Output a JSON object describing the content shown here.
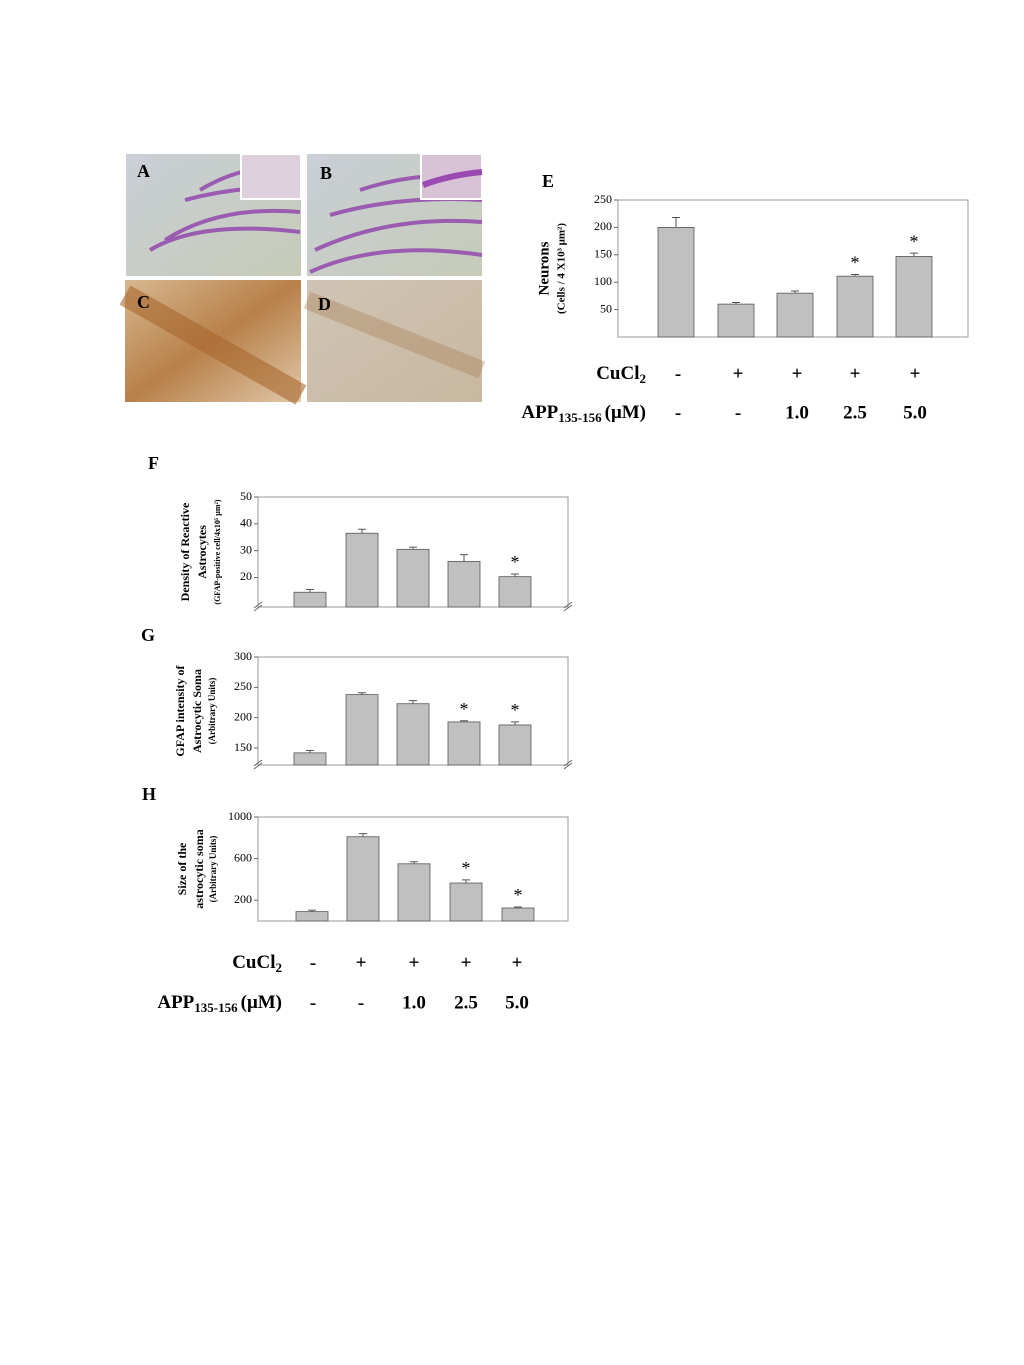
{
  "panels": [
    {
      "label": "A"
    },
    {
      "label": "B"
    },
    {
      "label": "C"
    },
    {
      "label": "D"
    }
  ],
  "chart_data": [
    {
      "type": "bar",
      "panel": "E",
      "ylabel": [
        "Neurons",
        "(Cells / 4 X10³ μm²)"
      ],
      "color": "#c0c0c0",
      "ylim": [
        0,
        250
      ],
      "yticks": [
        50,
        100,
        150,
        200,
        250
      ],
      "axis_break": false,
      "values": [
        200,
        60,
        80,
        111,
        147
      ],
      "errors": [
        18,
        3,
        4,
        3,
        6
      ],
      "annotations": [
        null,
        null,
        null,
        "*",
        "*"
      ]
    },
    {
      "type": "bar",
      "panel": "F",
      "ylabel": [
        "Density of Reactive",
        "Astrocytes",
        "(GFAP-positive cell/4x10⁵ μm²)"
      ],
      "color": "#c0c0c0",
      "ylim": [
        9,
        50
      ],
      "yticks": [
        20,
        30,
        40,
        50
      ],
      "axis_break": true,
      "values": [
        14.5,
        36.5,
        30.5,
        26,
        20.3
      ],
      "errors": [
        1,
        1.5,
        0.8,
        2.5,
        1
      ],
      "annotations": [
        null,
        null,
        null,
        null,
        "*"
      ]
    },
    {
      "type": "bar",
      "panel": "G",
      "ylabel": [
        "GFAP intensity of",
        "Astrocytic Soma",
        "(Arbitrary Units)"
      ],
      "color": "#c0c0c0",
      "ylim": [
        122,
        300
      ],
      "yticks": [
        150,
        200,
        250,
        300
      ],
      "axis_break": true,
      "values": [
        142,
        238,
        223,
        193,
        188
      ],
      "errors": [
        4,
        3,
        5,
        2,
        5
      ],
      "annotations": [
        null,
        null,
        null,
        "*",
        "*"
      ]
    },
    {
      "type": "bar",
      "panel": "H",
      "ylabel": [
        "Size of the",
        "astrocytic soma",
        "(Arbitrary Units)"
      ],
      "color": "#c0c0c0",
      "ylim": [
        0,
        1000
      ],
      "yticks": [
        200,
        600,
        1000
      ],
      "axis_break": false,
      "values": [
        90,
        810,
        550,
        365,
        125
      ],
      "errors": [
        15,
        30,
        20,
        30,
        10
      ],
      "annotations": [
        null,
        null,
        null,
        "*",
        "*"
      ]
    }
  ],
  "treatments_e": [
    {
      "label": {
        "main": "CuCl",
        "sub": "2"
      },
      "values": [
        "-",
        "+",
        "+",
        "+",
        "+"
      ]
    },
    {
      "label": {
        "main": "APP",
        "sub": "135-156",
        "after": "(μM)"
      },
      "values": [
        "-",
        "-",
        "1.0",
        "2.5",
        "5.0"
      ]
    }
  ],
  "treatments_fgh": [
    {
      "label": {
        "main": "CuCl",
        "sub": "2"
      },
      "values": [
        "-",
        "+",
        "+",
        "+",
        "+"
      ]
    },
    {
      "label": {
        "main": "APP",
        "sub": "135-156",
        "after": "(μM)"
      },
      "values": [
        "-",
        "-",
        "1.0",
        "2.5",
        "5.0"
      ]
    }
  ]
}
